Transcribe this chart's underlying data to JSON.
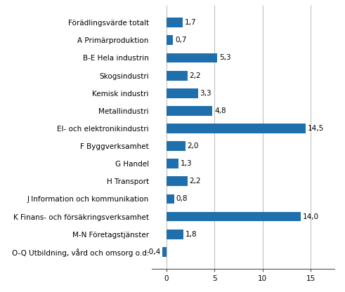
{
  "categories": [
    "O-Q Utbildning, vård och omsorg o.d.",
    "M-N Företagstjänster",
    "K Finans- och försäkringsverksamhet",
    "J Information och kommunikation",
    "H Transport",
    "G Handel",
    "F Byggverksamhet",
    "El- och elektronikindustri",
    "Metallindustri",
    "Kemisk industri",
    "Skogsindustri",
    "B-E Hela industrin",
    "A Primärproduktion",
    "Förädlingsvärde totalt"
  ],
  "values": [
    -0.4,
    1.8,
    14.0,
    0.8,
    2.2,
    1.3,
    2.0,
    14.5,
    4.8,
    3.3,
    2.2,
    5.3,
    0.7,
    1.7
  ],
  "bar_color": "#1F6FAD",
  "xlim": [
    -1.5,
    17.5
  ],
  "xticks": [
    0,
    5,
    10,
    15
  ],
  "grid_color": "#c0c0c0",
  "background_color": "#ffffff",
  "label_fontsize": 7.5,
  "value_fontsize": 7.5,
  "bar_height": 0.55
}
